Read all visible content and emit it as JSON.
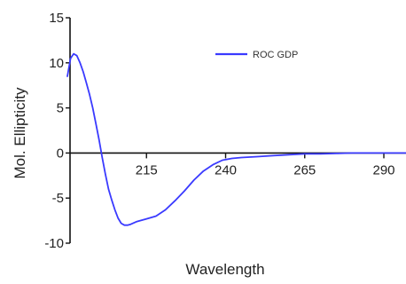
{
  "chart_data": {
    "type": "line",
    "xlabel": "Wavelength",
    "ylabel": "Mol. Ellipticity",
    "xlim": [
      190,
      297
    ],
    "ylim": [
      -10,
      15
    ],
    "x_ticks": [
      215,
      240,
      265,
      290
    ],
    "y_ticks": [
      15,
      10,
      5,
      0,
      -5,
      -10
    ],
    "x_tick_labels": [
      "215",
      "240",
      "265",
      "290"
    ],
    "y_tick_labels": [
      "15",
      "10",
      "5",
      "0",
      "-5",
      "-10"
    ],
    "grid": false,
    "legend_position": "top-right",
    "series": [
      {
        "name": "ROC GDP",
        "color": "#3a3aff",
        "x": [
          190,
          191,
          192,
          193,
          194,
          195,
          196,
          197,
          198,
          199,
          200,
          201,
          202,
          203,
          204,
          205,
          206,
          207,
          208,
          209,
          210,
          212,
          215,
          218,
          221,
          224,
          227,
          230,
          233,
          236,
          239,
          242,
          245,
          250,
          255,
          260,
          265,
          270,
          275,
          280,
          285,
          290,
          295,
          297
        ],
        "y": [
          8.5,
          10.5,
          11.0,
          10.8,
          10.0,
          9.0,
          7.8,
          6.5,
          5.0,
          3.3,
          1.5,
          -0.5,
          -2.3,
          -4.0,
          -5.2,
          -6.3,
          -7.2,
          -7.8,
          -8.0,
          -8.0,
          -7.9,
          -7.6,
          -7.3,
          -7.0,
          -6.3,
          -5.3,
          -4.2,
          -3.0,
          -2.0,
          -1.3,
          -0.8,
          -0.6,
          -0.5,
          -0.4,
          -0.3,
          -0.2,
          -0.1,
          -0.1,
          -0.05,
          0.0,
          0.0,
          0.0,
          0.0,
          0.0
        ]
      }
    ]
  }
}
